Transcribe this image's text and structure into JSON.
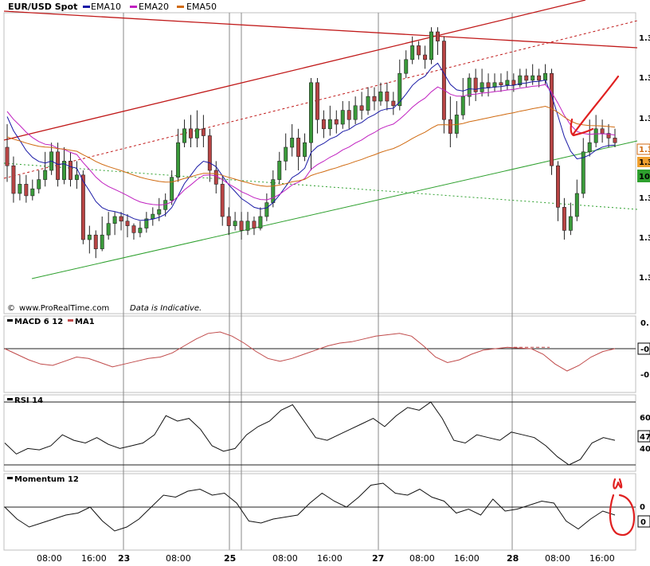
{
  "colors": {
    "price_up": "#3a9a3a",
    "price_down": "#b84444",
    "ema10": "#1a1aa6",
    "ema20": "#c020c0",
    "ema50": "#d06a10",
    "channel": "#c01818",
    "trend_green": "#2ea02e",
    "macd_ma": "#c04a4a",
    "indicator": "#111111",
    "annotation": "#e02020"
  },
  "legend": {
    "instrument": "EUR/USD Spot",
    "ema10": "EMA10",
    "ema20": "EMA20",
    "ema50": "EMA50"
  },
  "watermark": {
    "copyright": "©",
    "site": "www.ProRealTime.com",
    "note": "Data is Indicative."
  },
  "price_axis": {
    "labels": [
      "1.3",
      "1.3",
      "1.3",
      "1.3",
      "1.3",
      "1.3",
      "1.3"
    ],
    "badge_orange": "1.3",
    "badge_darkorange": "1.3",
    "badge_green": "10"
  },
  "x_axis": {
    "labels": [
      "08:00",
      "16:00",
      "23",
      "08:00",
      "25",
      "08:00",
      "16:00",
      "27",
      "08:00",
      "16:00",
      "28",
      "08:00",
      "16:00"
    ]
  },
  "panels": {
    "macd": {
      "label": "MACD 6 12",
      "ma_label": "MA1",
      "ticks": [
        "0.",
        "-0",
        "-0."
      ]
    },
    "rsi": {
      "label": "RSI 14",
      "ticks": [
        "60",
        "47",
        "40"
      ]
    },
    "momentum": {
      "label": "Momentum 12",
      "ticks": [
        "0",
        "0"
      ]
    }
  },
  "chart_data": {
    "type": "candlestick",
    "title": "EUR/USD Spot",
    "series": [
      {
        "name": "EMA10",
        "kind": "line"
      },
      {
        "name": "EMA20",
        "kind": "line"
      },
      {
        "name": "EMA50",
        "kind": "line"
      }
    ],
    "candles": [
      [
        0.5,
        0.42,
        0.35,
        0.6
      ],
      [
        0.42,
        0.3,
        0.26,
        0.46
      ],
      [
        0.3,
        0.34,
        0.27,
        0.38
      ],
      [
        0.34,
        0.29,
        0.26,
        0.38
      ],
      [
        0.29,
        0.32,
        0.27,
        0.36
      ],
      [
        0.32,
        0.36,
        0.3,
        0.4
      ],
      [
        0.36,
        0.4,
        0.33,
        0.48
      ],
      [
        0.4,
        0.48,
        0.38,
        0.52
      ],
      [
        0.48,
        0.36,
        0.33,
        0.52
      ],
      [
        0.36,
        0.44,
        0.34,
        0.5
      ],
      [
        0.44,
        0.36,
        0.33,
        0.48
      ],
      [
        0.36,
        0.38,
        0.32,
        0.44
      ],
      [
        0.38,
        0.1,
        0.08,
        0.4
      ],
      [
        0.1,
        0.12,
        0.04,
        0.16
      ],
      [
        0.12,
        0.06,
        0.02,
        0.14
      ],
      [
        0.06,
        0.12,
        0.05,
        0.2
      ],
      [
        0.12,
        0.17,
        0.1,
        0.22
      ],
      [
        0.17,
        0.2,
        0.12,
        0.22
      ],
      [
        0.2,
        0.18,
        0.14,
        0.22
      ],
      [
        0.18,
        0.16,
        0.11,
        0.21
      ],
      [
        0.16,
        0.13,
        0.1,
        0.17
      ],
      [
        0.13,
        0.15,
        0.11,
        0.18
      ],
      [
        0.15,
        0.19,
        0.13,
        0.22
      ],
      [
        0.19,
        0.21,
        0.16,
        0.24
      ],
      [
        0.21,
        0.23,
        0.18,
        0.28
      ],
      [
        0.23,
        0.27,
        0.2,
        0.3
      ],
      [
        0.27,
        0.37,
        0.25,
        0.4
      ],
      [
        0.37,
        0.52,
        0.35,
        0.58
      ],
      [
        0.52,
        0.58,
        0.5,
        0.62
      ],
      [
        0.58,
        0.54,
        0.5,
        0.64
      ],
      [
        0.54,
        0.58,
        0.5,
        0.66
      ],
      [
        0.58,
        0.55,
        0.5,
        0.64
      ],
      [
        0.55,
        0.4,
        0.35,
        0.58
      ],
      [
        0.4,
        0.34,
        0.3,
        0.44
      ],
      [
        0.34,
        0.2,
        0.16,
        0.38
      ],
      [
        0.2,
        0.16,
        0.12,
        0.24
      ],
      [
        0.16,
        0.18,
        0.14,
        0.22
      ],
      [
        0.18,
        0.14,
        0.1,
        0.22
      ],
      [
        0.14,
        0.18,
        0.12,
        0.22
      ],
      [
        0.18,
        0.15,
        0.12,
        0.2
      ],
      [
        0.15,
        0.2,
        0.14,
        0.24
      ],
      [
        0.2,
        0.26,
        0.18,
        0.3
      ],
      [
        0.26,
        0.36,
        0.24,
        0.4
      ],
      [
        0.36,
        0.44,
        0.34,
        0.48
      ],
      [
        0.44,
        0.5,
        0.4,
        0.56
      ],
      [
        0.5,
        0.54,
        0.46,
        0.6
      ],
      [
        0.54,
        0.46,
        0.4,
        0.58
      ],
      [
        0.46,
        0.52,
        0.44,
        0.56
      ],
      [
        0.52,
        0.78,
        0.4,
        0.8
      ],
      [
        0.78,
        0.62,
        0.56,
        0.8
      ],
      [
        0.62,
        0.58,
        0.54,
        0.66
      ],
      [
        0.58,
        0.62,
        0.55,
        0.68
      ],
      [
        0.62,
        0.6,
        0.56,
        0.66
      ],
      [
        0.6,
        0.66,
        0.58,
        0.7
      ],
      [
        0.66,
        0.62,
        0.58,
        0.7
      ],
      [
        0.62,
        0.68,
        0.6,
        0.72
      ],
      [
        0.68,
        0.66,
        0.62,
        0.74
      ],
      [
        0.66,
        0.72,
        0.64,
        0.76
      ],
      [
        0.72,
        0.7,
        0.66,
        0.76
      ],
      [
        0.7,
        0.74,
        0.68,
        0.78
      ],
      [
        0.74,
        0.7,
        0.66,
        0.78
      ],
      [
        0.7,
        0.68,
        0.64,
        0.74
      ],
      [
        0.68,
        0.82,
        0.66,
        0.88
      ],
      [
        0.82,
        0.88,
        0.8,
        0.92
      ],
      [
        0.88,
        0.94,
        0.86,
        0.98
      ],
      [
        0.94,
        0.9,
        0.88,
        0.96
      ],
      [
        0.9,
        0.88,
        0.84,
        0.94
      ],
      [
        0.88,
        1.0,
        0.86,
        1.02
      ],
      [
        1.0,
        0.96,
        0.9,
        1.02
      ],
      [
        0.96,
        0.62,
        0.56,
        0.98
      ],
      [
        0.62,
        0.56,
        0.5,
        0.72
      ],
      [
        0.56,
        0.64,
        0.54,
        0.7
      ],
      [
        0.64,
        0.72,
        0.62,
        0.8
      ],
      [
        0.72,
        0.8,
        0.68,
        0.82
      ],
      [
        0.8,
        0.74,
        0.7,
        0.84
      ],
      [
        0.74,
        0.78,
        0.72,
        0.84
      ],
      [
        0.78,
        0.76,
        0.72,
        0.82
      ],
      [
        0.76,
        0.78,
        0.74,
        0.82
      ],
      [
        0.78,
        0.77,
        0.74,
        0.82
      ],
      [
        0.77,
        0.79,
        0.75,
        0.83
      ],
      [
        0.79,
        0.77,
        0.74,
        0.82
      ],
      [
        0.77,
        0.81,
        0.76,
        0.84
      ],
      [
        0.81,
        0.79,
        0.76,
        0.84
      ],
      [
        0.79,
        0.81,
        0.77,
        0.86
      ],
      [
        0.81,
        0.79,
        0.76,
        0.84
      ],
      [
        0.79,
        0.82,
        0.77,
        0.86
      ],
      [
        0.82,
        0.42,
        0.38,
        0.84
      ],
      [
        0.42,
        0.24,
        0.18,
        0.44
      ],
      [
        0.24,
        0.14,
        0.1,
        0.28
      ],
      [
        0.14,
        0.2,
        0.12,
        0.26
      ],
      [
        0.2,
        0.3,
        0.18,
        0.36
      ],
      [
        0.3,
        0.48,
        0.28,
        0.54
      ],
      [
        0.48,
        0.52,
        0.46,
        0.62
      ],
      [
        0.52,
        0.58,
        0.5,
        0.64
      ],
      [
        0.58,
        0.56,
        0.52,
        0.62
      ],
      [
        0.56,
        0.54,
        0.5,
        0.6
      ],
      [
        0.54,
        0.52,
        0.5,
        0.58
      ]
    ],
    "macd": [
      0.0,
      -0.2,
      -0.4,
      -0.55,
      -0.6,
      -0.45,
      -0.3,
      -0.35,
      -0.5,
      -0.65,
      -0.55,
      -0.45,
      -0.35,
      -0.3,
      -0.15,
      0.1,
      0.35,
      0.55,
      0.6,
      0.45,
      0.2,
      -0.1,
      -0.35,
      -0.45,
      -0.35,
      -0.2,
      -0.05,
      0.1,
      0.2,
      0.25,
      0.35,
      0.45,
      0.5,
      0.55,
      0.45,
      0.1,
      -0.3,
      -0.5,
      -0.4,
      -0.2,
      -0.05,
      0.0,
      0.05,
      0.02,
      0.0,
      -0.2,
      -0.55,
      -0.8,
      -0.6,
      -0.3,
      -0.1,
      0.0
    ],
    "macd_ma": [
      0.05,
      0.05,
      0.05
    ],
    "rsi": [
      46,
      38,
      42,
      41,
      44,
      52,
      48,
      46,
      50,
      45,
      42,
      44,
      46,
      52,
      66,
      62,
      64,
      56,
      44,
      40,
      42,
      52,
      58,
      62,
      70,
      74,
      62,
      50,
      48,
      52,
      56,
      60,
      64,
      58,
      66,
      72,
      70,
      76,
      64,
      48,
      46,
      52,
      50,
      48,
      54,
      52,
      50,
      44,
      36,
      30,
      34,
      46,
      50,
      48
    ],
    "momentum": [
      0.0,
      -0.3,
      -0.5,
      -0.4,
      -0.3,
      -0.2,
      -0.15,
      0.0,
      -0.35,
      -0.6,
      -0.5,
      -0.3,
      0.0,
      0.3,
      0.25,
      0.4,
      0.45,
      0.3,
      0.35,
      0.1,
      -0.35,
      -0.4,
      -0.3,
      -0.25,
      -0.2,
      0.1,
      0.35,
      0.15,
      0.0,
      0.25,
      0.55,
      0.6,
      0.35,
      0.3,
      0.45,
      0.25,
      0.15,
      -0.15,
      -0.05,
      -0.2,
      0.2,
      -0.1,
      -0.05,
      0.05,
      0.15,
      0.1,
      -0.35,
      -0.55,
      -0.3,
      -0.1,
      -0.2
    ]
  }
}
